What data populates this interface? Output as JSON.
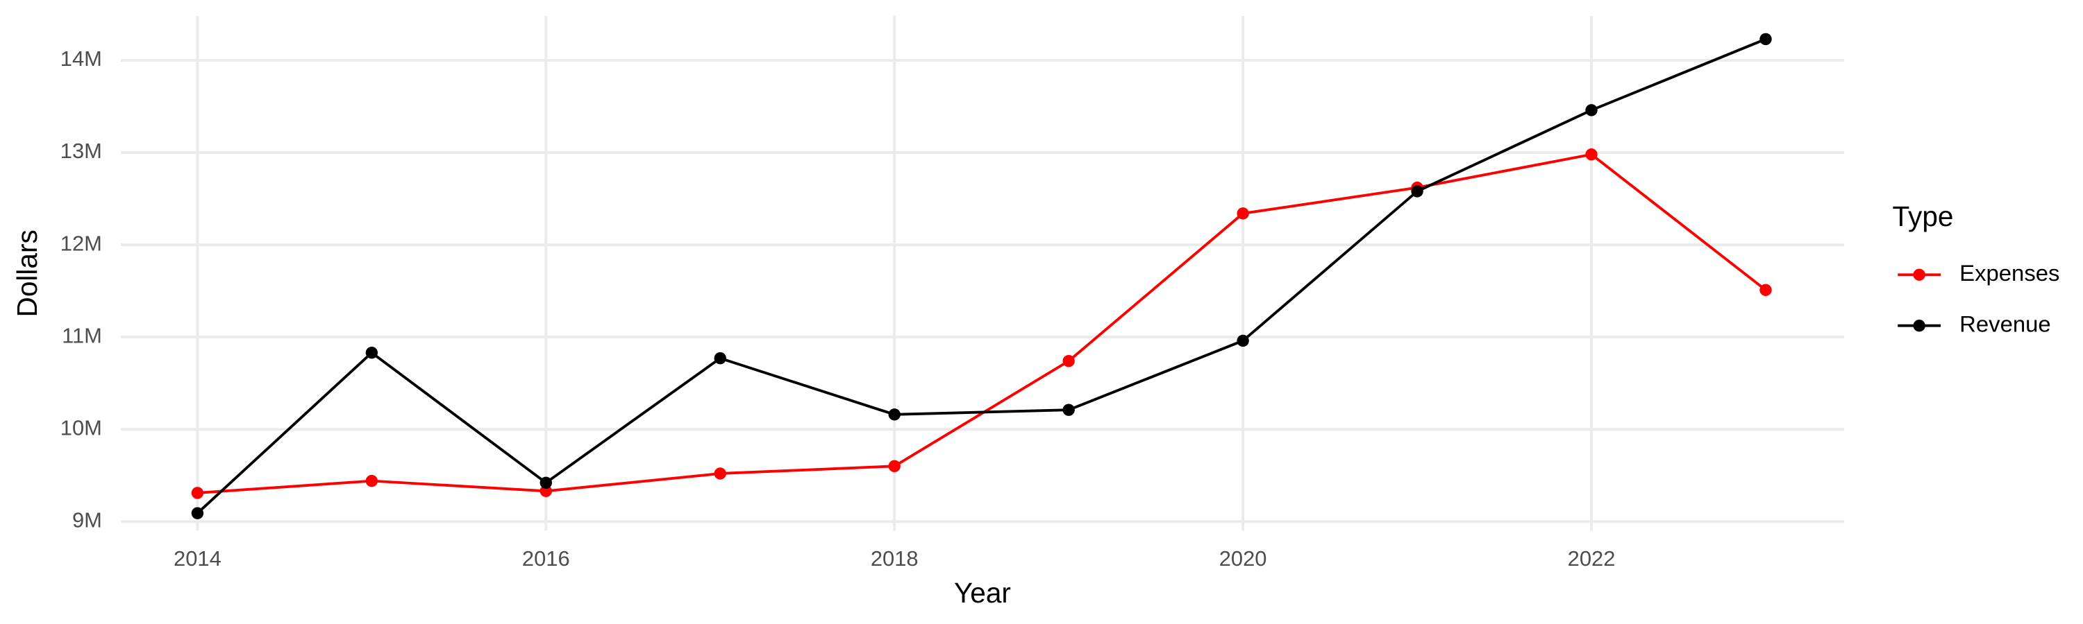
{
  "chart_data": {
    "type": "line",
    "x_label": "Year",
    "y_label": "Dollars",
    "legend_title": "Type",
    "legend_position": "right",
    "grid": true,
    "x": [
      2014,
      2015,
      2016,
      2017,
      2018,
      2019,
      2020,
      2021,
      2022,
      2023
    ],
    "xlim": [
      2013.56,
      2023.45
    ],
    "xticks": [
      2014,
      2016,
      2018,
      2020,
      2022
    ],
    "ylim": [
      8900000,
      14480000
    ],
    "yticks": [
      {
        "value": 9000000,
        "label": "9M"
      },
      {
        "value": 10000000,
        "label": "10M"
      },
      {
        "value": 11000000,
        "label": "11M"
      },
      {
        "value": 12000000,
        "label": "12M"
      },
      {
        "value": 13000000,
        "label": "13M"
      },
      {
        "value": 14000000,
        "label": "14M"
      }
    ],
    "series": [
      {
        "name": "Expenses",
        "color": "#ff0000",
        "values": [
          9310000,
          9440000,
          9330000,
          9520000,
          9600000,
          10740000,
          12340000,
          12620000,
          12980000,
          11510000
        ]
      },
      {
        "name": "Revenue",
        "color": "#000000",
        "values": [
          9090000,
          10830000,
          9420000,
          10770000,
          10160000,
          10210000,
          10960000,
          12580000,
          13460000,
          14230000
        ]
      }
    ]
  }
}
